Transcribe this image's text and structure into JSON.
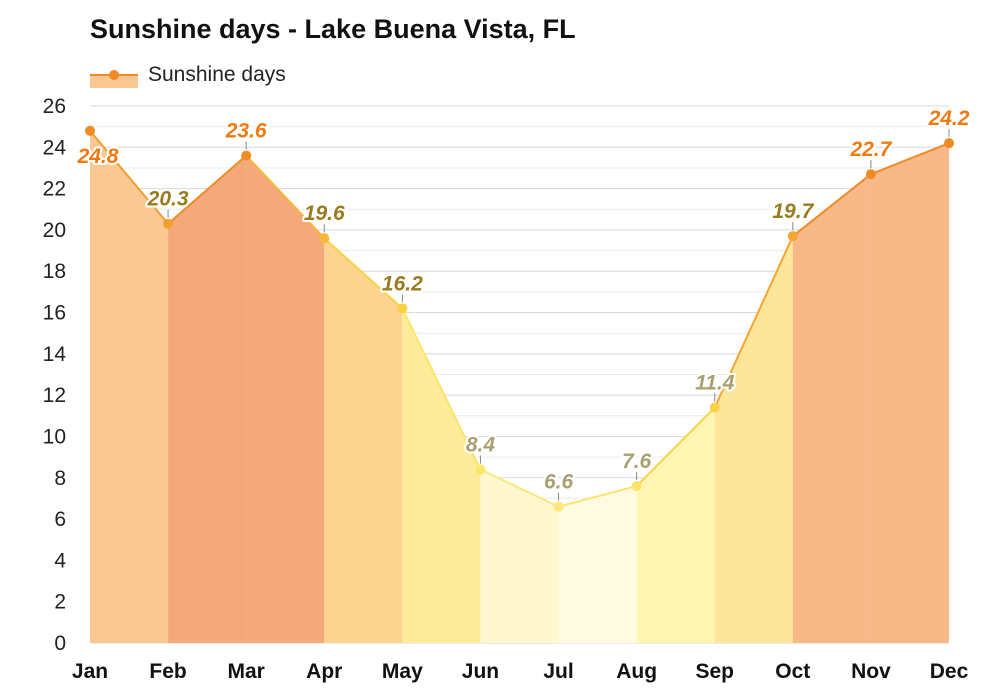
{
  "chart_data": {
    "type": "area",
    "title": "Sunshine days - Lake Buena Vista, FL",
    "categories": [
      "Jan",
      "Feb",
      "Mar",
      "Apr",
      "May",
      "Jun",
      "Jul",
      "Aug",
      "Sep",
      "Oct",
      "Nov",
      "Dec"
    ],
    "series": [
      {
        "name": "Sunshine days",
        "values": [
          24.8,
          20.3,
          23.6,
          19.6,
          16.2,
          8.4,
          6.6,
          7.6,
          11.4,
          19.7,
          22.7,
          24.2
        ],
        "color": "#f08a24"
      }
    ],
    "ylim": [
      0,
      26
    ],
    "yticks": [
      0,
      2,
      4,
      6,
      8,
      10,
      12,
      14,
      16,
      18,
      20,
      22,
      24,
      26
    ],
    "grid": true,
    "legend_position": "top-left",
    "band_colors": [
      "#f9c893",
      "#f5a97a",
      "#f5a97a",
      "#fcd48f",
      "#feeb9a",
      "#fff7d0",
      "#fffbe3",
      "#fff5b2",
      "#fde69a",
      "#f8b888",
      "#f8b888",
      "#f8b888"
    ],
    "marker_colors": [
      "#f08a24",
      "#f0a030",
      "#f08a24",
      "#f5b839",
      "#fad142",
      "#fbe66a",
      "#fce87c",
      "#fce36a",
      "#f9d248",
      "#f5a532",
      "#f08a24",
      "#f08a24"
    ],
    "label_colors": [
      "#f07a10",
      "#9a7b1e",
      "#f07a10",
      "#9a7b1e",
      "#9a7b1e",
      "#a8a070",
      "#a8a070",
      "#a8a070",
      "#a8a070",
      "#9a7b1e",
      "#f07a10",
      "#f07a10"
    ]
  }
}
